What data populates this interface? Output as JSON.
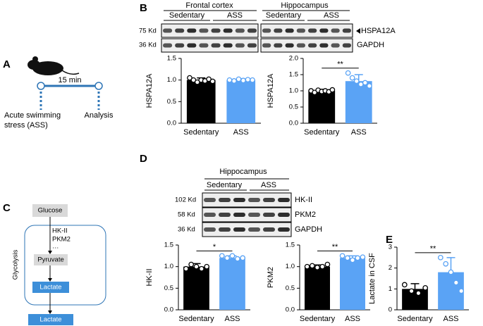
{
  "panel_labels": [
    "A",
    "B",
    "C",
    "D",
    "E"
  ],
  "panel_a": {
    "duration": "15 min",
    "start": [
      "Acute swimming",
      "stress (ASS)"
    ],
    "end": "Analysis"
  },
  "panel_b_blot": {
    "regions": [
      "Frontal cortex",
      "Hippocampus"
    ],
    "groups": [
      "Sedentary",
      "ASS",
      "Sedentary",
      "ASS"
    ],
    "sizes": [
      "75 Kd",
      "36 Kd"
    ],
    "proteins": [
      "HSPA12A",
      "GAPDH"
    ]
  },
  "panel_c": {
    "nodes": [
      "Glucose",
      "Pyruvate",
      "Lactate",
      "Lactate"
    ],
    "enzymes": [
      "HK-II",
      "PKM2",
      "…"
    ],
    "compartment": "Glycolysis"
  },
  "panel_d_blot": {
    "region": "Hippocampus",
    "groups": [
      "Sedentary",
      "ASS"
    ],
    "sizes": [
      "102 Kd",
      "58 Kd",
      "36 Kd"
    ],
    "proteins": [
      "HK-II",
      "PKM2",
      "GAPDH"
    ]
  },
  "chart_data": [
    {
      "type": "bar",
      "y_label": "HSPA12A",
      "categories": [
        "Sedentary",
        "ASS"
      ],
      "values": [
        1.0,
        1.0
      ],
      "errors": [
        0.05,
        0.03
      ],
      "colors": [
        "#000000",
        "#5aa3f5"
      ],
      "points": [
        [
          1.05,
          1.0,
          0.95,
          1.0,
          0.98,
          1.02,
          0.97
        ],
        [
          1.0,
          0.98,
          1.02,
          0.99,
          1.01,
          1.0
        ]
      ],
      "ylim": [
        0,
        1.5
      ],
      "yticks": [
        {
          "value": 0,
          "label": "0.0"
        },
        {
          "value": 0.5,
          "label": "0.5"
        },
        {
          "value": 1,
          "label": "1.0"
        },
        {
          "value": 1.5,
          "label": "1.5"
        }
      ]
    },
    {
      "type": "bar",
      "y_label": "HSPA12A",
      "categories": [
        "Sedentary",
        "ASS"
      ],
      "values": [
        1.0,
        1.3
      ],
      "errors": [
        0.05,
        0.2
      ],
      "colors": [
        "#000000",
        "#5aa3f5"
      ],
      "points": [
        [
          1.0,
          0.95,
          1.02,
          0.98,
          1.0,
          0.97,
          1.03
        ],
        [
          1.55,
          1.4,
          1.3,
          1.2,
          1.25,
          1.15
        ]
      ],
      "significance": "**",
      "ylim": [
        0,
        2
      ],
      "yticks": [
        {
          "value": 0,
          "label": "0.0"
        },
        {
          "value": 0.5,
          "label": "0.5"
        },
        {
          "value": 1,
          "label": "1.0"
        },
        {
          "value": 1.5,
          "label": "1.5"
        },
        {
          "value": 2,
          "label": "2.0"
        }
      ]
    },
    {
      "type": "bar",
      "y_label": "HK-II",
      "categories": [
        "Sedentary",
        "ASS"
      ],
      "values": [
        1.0,
        1.2
      ],
      "errors": [
        0.07,
        0.05
      ],
      "colors": [
        "#000000",
        "#5aa3f5"
      ],
      "points": [
        [
          0.95,
          1.05,
          1.0,
          0.95,
          1.0
        ],
        [
          1.25,
          1.2,
          1.25,
          1.18,
          1.2
        ]
      ],
      "significance": "*",
      "ylim": [
        0,
        1.5
      ],
      "yticks": [
        {
          "value": 0,
          "label": "0.0"
        },
        {
          "value": 0.5,
          "label": "0.5"
        },
        {
          "value": 1,
          "label": "1.0"
        },
        {
          "value": 1.5,
          "label": "1.5"
        }
      ]
    },
    {
      "type": "bar",
      "y_label": "PKM2",
      "categories": [
        "Sedentary",
        "ASS"
      ],
      "values": [
        1.0,
        1.2
      ],
      "errors": [
        0.04,
        0.05
      ],
      "colors": [
        "#000000",
        "#5aa3f5"
      ],
      "points": [
        [
          1.0,
          1.02,
          0.98,
          1.0,
          1.05
        ],
        [
          1.25,
          1.2,
          1.15,
          1.2,
          1.22
        ]
      ],
      "significance": "**",
      "ylim": [
        0,
        1.5
      ],
      "yticks": [
        {
          "value": 0,
          "label": "0.0"
        },
        {
          "value": 0.5,
          "label": "0.5"
        },
        {
          "value": 1,
          "label": "1.0"
        },
        {
          "value": 1.5,
          "label": "1.5"
        }
      ]
    },
    {
      "type": "bar",
      "y_label": "Lactate in CSF",
      "categories": [
        "Sedentary",
        "ASS"
      ],
      "values": [
        1.0,
        1.8
      ],
      "errors": [
        0.25,
        0.7
      ],
      "colors": [
        "#000000",
        "#5aa3f5"
      ],
      "points": [
        [
          1.2,
          0.9,
          0.8,
          1.05
        ],
        [
          2.5,
          2.2,
          1.8,
          1.3,
          0.9
        ]
      ],
      "significance": "**",
      "ylim": [
        0,
        3
      ],
      "yticks": [
        0,
        1,
        2,
        3
      ]
    }
  ]
}
